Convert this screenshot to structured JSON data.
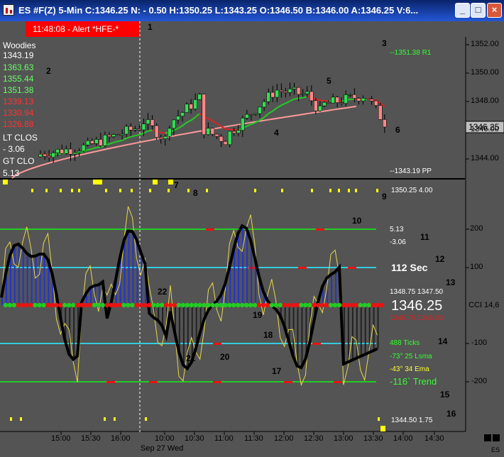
{
  "window": {
    "title": "ES #F(Z) 5-Min C:1346.25 N: - 0.50 H:1350.25 L:1343.25 O:1346.50 B:1346.00 A:1346.25 V:6...",
    "minimize": "_",
    "maximize": "□",
    "close": "×"
  },
  "alert": "11:48:08 - Alert *HFE-*",
  "woodies_panel": {
    "title": "Woodies",
    "values": [
      "1343.19",
      "1363.63",
      "1355.44",
      "1351.38",
      "1339.13",
      "1330.94",
      "1326.88"
    ],
    "value_colors": [
      "#ffffff",
      "#66ff66",
      "#66ff66",
      "#66ff66",
      "#ff3333",
      "#ff3333",
      "#ff3333"
    ],
    "lt_label": "LT CLOS",
    "lt_value": "- 3.06",
    "gt_label": "GT CLO",
    "gt_value": "5.13"
  },
  "price_annotations": {
    "r1": "--1351.38 R1",
    "pp": "--1343.19 PP",
    "current": "1346.25"
  },
  "price_axis": [
    "1352.00",
    "1350.00",
    "1348.00",
    "1346.00",
    "1344.00"
  ],
  "cci_panel": {
    "top_right": "1350.25 4.00",
    "val_513": "5.13",
    "val_306": "-3.06",
    "sec": "112 Sec",
    "hilo": "1348.75 1347.50",
    "price_big": "1346.25",
    "price_sub": "1346.75 1346.00",
    "ticks": "488 Ticks",
    "lsma": "-73° 25 Lsma",
    "ema": "-43° 34 Ema",
    "trend": "-116` Trend",
    "bottom_right": "1344.50 1.75",
    "cci_label": "CCI 14,6"
  },
  "cci_axis": [
    "200",
    "100",
    "-100",
    "-200"
  ],
  "time_axis": [
    "15:00",
    "15:30",
    "16:00",
    "10:00",
    "10:30",
    "11:00",
    "11:30",
    "12:00",
    "12:30",
    "13:00",
    "13:30",
    "14:00",
    "14:30"
  ],
  "date_label": "Sep 27 Wed",
  "symbol": "ES",
  "callouts": [
    "1",
    "2",
    "3",
    "4",
    "5",
    "6",
    "7",
    "8",
    "9",
    "10",
    "11",
    "12",
    "13",
    "14",
    "15",
    "16",
    "17",
    "18",
    "19",
    "20",
    "21",
    "22"
  ],
  "colors": {
    "background": "#545454",
    "up_candle": "#33dd55",
    "down_candle": "#ff8888",
    "ema_green": "#22cc22",
    "ema_red": "#dd2222",
    "sma_pink": "#ff9999",
    "cci_line": "#000000",
    "turbo_line": "#e8d848",
    "histogram": "#2233cc",
    "line_200": "#22cc22",
    "line_100": "#33ccdd"
  }
}
